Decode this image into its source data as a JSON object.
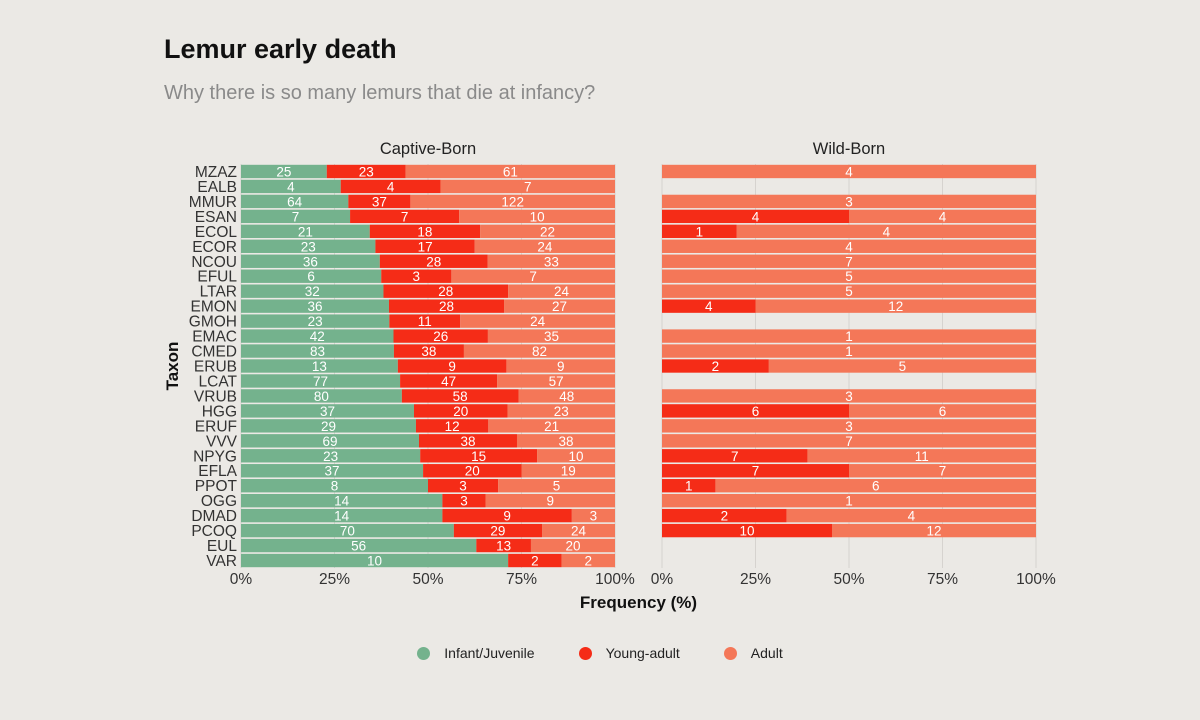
{
  "chart_data": {
    "type": "bar",
    "orientation": "horizontal",
    "stacked": "percent",
    "title": "Lemur early death",
    "subtitle": "Why there is so many lemurs that die at infancy?",
    "xlabel": "Frequency (%)",
    "ylabel": "Taxon",
    "xlim": [
      0,
      100
    ],
    "xticks": [
      "0%",
      "25%",
      "50%",
      "75%",
      "100%"
    ],
    "grid": true,
    "legend_position": "bottom",
    "colors": {
      "Infant/Juvenile": "#74b28d",
      "Young-adult": "#f52c17",
      "Adult": "#f47758",
      "background": "#ebe9e5",
      "grid": "#d6d3cf"
    },
    "categories": [
      "MZAZ",
      "EALB",
      "MMUR",
      "ESAN",
      "ECOL",
      "ECOR",
      "NCOU",
      "EFUL",
      "LTAR",
      "EMON",
      "GMOH",
      "EMAC",
      "CMED",
      "ERUB",
      "LCAT",
      "VRUB",
      "HGG",
      "ERUF",
      "VVV",
      "NPYG",
      "EFLA",
      "PPOT",
      "OGG",
      "DMAD",
      "PCOQ",
      "EUL",
      "VAR"
    ],
    "panels": [
      {
        "name": "Captive-Born",
        "series": [
          {
            "name": "Infant/Juvenile",
            "values": [
              25,
              4,
              64,
              7,
              21,
              23,
              36,
              6,
              32,
              36,
              23,
              42,
              83,
              13,
              77,
              80,
              37,
              29,
              69,
              23,
              37,
              8,
              14,
              14,
              70,
              56,
              10
            ]
          },
          {
            "name": "Young-adult",
            "values": [
              23,
              4,
              37,
              7,
              18,
              17,
              28,
              3,
              28,
              28,
              11,
              26,
              38,
              9,
              47,
              58,
              20,
              12,
              38,
              15,
              20,
              3,
              3,
              9,
              29,
              13,
              2
            ]
          },
          {
            "name": "Adult",
            "values": [
              61,
              7,
              122,
              10,
              22,
              24,
              33,
              7,
              24,
              27,
              24,
              35,
              82,
              9,
              57,
              48,
              23,
              21,
              38,
              10,
              19,
              5,
              9,
              3,
              24,
              20,
              2
            ]
          }
        ]
      },
      {
        "name": "Wild-Born",
        "series": [
          {
            "name": "Infant/Juvenile",
            "values": [
              null,
              null,
              null,
              null,
              null,
              null,
              null,
              null,
              null,
              null,
              null,
              null,
              null,
              null,
              null,
              null,
              null,
              null,
              null,
              null,
              null,
              null,
              null,
              null,
              null,
              null,
              null
            ]
          },
          {
            "name": "Young-adult",
            "values": [
              null,
              null,
              null,
              4,
              1,
              null,
              null,
              null,
              null,
              4,
              null,
              null,
              null,
              2,
              null,
              null,
              6,
              null,
              null,
              7,
              7,
              1,
              null,
              2,
              10,
              null,
              null
            ]
          },
          {
            "name": "Adult",
            "values": [
              4,
              null,
              3,
              4,
              4,
              4,
              7,
              5,
              5,
              12,
              null,
              1,
              1,
              5,
              null,
              3,
              6,
              3,
              7,
              11,
              7,
              6,
              1,
              4,
              12,
              null,
              null
            ]
          }
        ]
      }
    ]
  }
}
